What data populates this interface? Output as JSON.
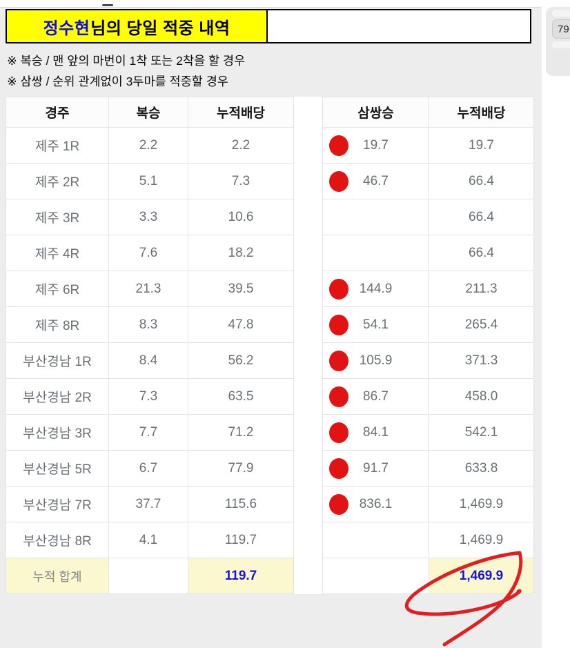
{
  "header": {
    "title_name": "정수현",
    "title_suffix": "님의 당일 적중 내역",
    "page_badge": "79"
  },
  "notes": [
    "※ 복승 / 맨 앞의 마번이 1착 또는 2착을 할 경우",
    "※ 삼쌍 / 순위 관계없이 3두마를 적중할 경우"
  ],
  "left_table": {
    "headers": [
      "경주",
      "복승",
      "누적배당"
    ],
    "rows": [
      {
        "race": "제주 1R",
        "odds": "2.2",
        "cumulative": "2.2"
      },
      {
        "race": "제주 2R",
        "odds": "5.1",
        "cumulative": "7.3"
      },
      {
        "race": "제주 3R",
        "odds": "3.3",
        "cumulative": "10.6"
      },
      {
        "race": "제주 4R",
        "odds": "7.6",
        "cumulative": "18.2"
      },
      {
        "race": "제주 6R",
        "odds": "21.3",
        "cumulative": "39.5"
      },
      {
        "race": "제주 8R",
        "odds": "8.3",
        "cumulative": "47.8"
      },
      {
        "race": "부산경남 1R",
        "odds": "8.4",
        "cumulative": "56.2"
      },
      {
        "race": "부산경남 2R",
        "odds": "7.3",
        "cumulative": "63.5"
      },
      {
        "race": "부산경남 3R",
        "odds": "7.7",
        "cumulative": "71.2"
      },
      {
        "race": "부산경남 5R",
        "odds": "6.7",
        "cumulative": "77.9"
      },
      {
        "race": "부산경남 7R",
        "odds": "37.7",
        "cumulative": "115.6"
      },
      {
        "race": "부산경남 8R",
        "odds": "4.1",
        "cumulative": "119.7"
      }
    ],
    "total_label": "누적 합계",
    "total_value": "119.7"
  },
  "right_table": {
    "headers": [
      "삼쌍승",
      "누적배당"
    ],
    "rows": [
      {
        "hit": true,
        "odds": "19.7",
        "cumulative": "19.7"
      },
      {
        "hit": true,
        "odds": "46.7",
        "cumulative": "66.4"
      },
      {
        "hit": false,
        "odds": "",
        "cumulative": "66.4"
      },
      {
        "hit": false,
        "odds": "",
        "cumulative": "66.4"
      },
      {
        "hit": true,
        "odds": "144.9",
        "cumulative": "211.3"
      },
      {
        "hit": true,
        "odds": "54.1",
        "cumulative": "265.4"
      },
      {
        "hit": true,
        "odds": "105.9",
        "cumulative": "371.3"
      },
      {
        "hit": true,
        "odds": "86.7",
        "cumulative": "458.0"
      },
      {
        "hit": true,
        "odds": "84.1",
        "cumulative": "542.1"
      },
      {
        "hit": true,
        "odds": "91.7",
        "cumulative": "633.8"
      },
      {
        "hit": true,
        "odds": "836.1",
        "cumulative": "1,469.9"
      },
      {
        "hit": false,
        "odds": "",
        "cumulative": "1,469.9"
      }
    ],
    "total_value": "1,469.9"
  },
  "icons": {
    "hit_dot": "red-dot-icon"
  },
  "colors": {
    "page_bg": "#ededed",
    "title_highlight_bg": "#ffff00",
    "title_name_color": "#0a0af0",
    "hit_dot": "#e21313",
    "total_cell_bg": "#fbf8d0",
    "total_value_color": "#1414d2",
    "annotation_pen": "#e02020"
  },
  "annotation": {
    "type": "hand-drawn-circle",
    "target": "triple-total-value"
  }
}
